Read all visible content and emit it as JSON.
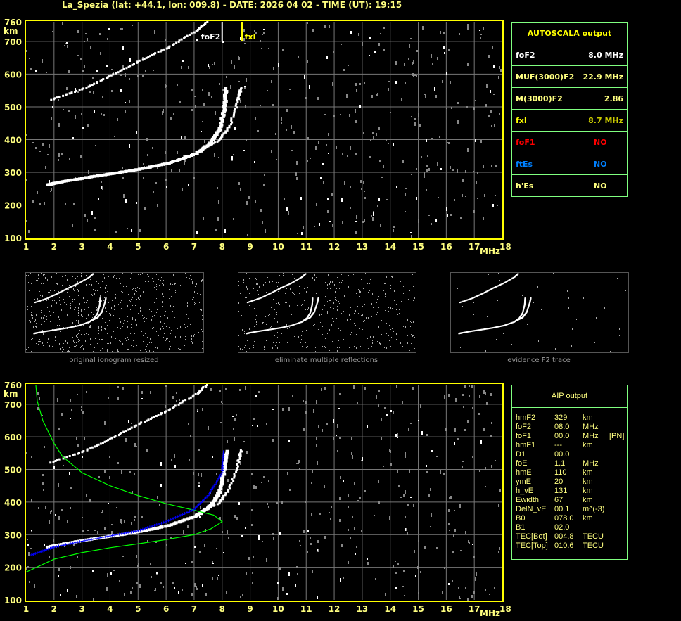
{
  "header": {
    "title": "La_Spezia (lat: +44.1, lon: 009.8) - DATE: 2026 04 02 - TIME (UT): 19:15"
  },
  "chart_data": [
    {
      "type": "scatter",
      "name": "ionogram-autoscala",
      "xlabel": "MHz",
      "ylabel": "km",
      "xlim": [
        1,
        18
      ],
      "ylim": [
        100,
        760
      ],
      "xticks": [
        "1",
        "2",
        "3",
        "4",
        "5",
        "6",
        "7",
        "8",
        "9",
        "10",
        "11",
        "12",
        "13",
        "14",
        "15",
        "16",
        "17",
        "18"
      ],
      "yticks": [
        "100",
        "200",
        "300",
        "400",
        "500",
        "600",
        "700",
        "760"
      ],
      "grid": true,
      "markers": [
        {
          "label": "foF2",
          "x": 8.0,
          "color": "#ffffff"
        },
        {
          "label": "fxI",
          "x": 8.7,
          "color": "#ffff00"
        }
      ]
    },
    {
      "type": "line",
      "name": "ionogram-aip",
      "xlabel": "MHz",
      "ylabel": "km",
      "xlim": [
        1,
        18
      ],
      "ylim": [
        100,
        760
      ],
      "xticks": [
        "1",
        "2",
        "3",
        "4",
        "5",
        "6",
        "7",
        "8",
        "9",
        "10",
        "11",
        "12",
        "13",
        "14",
        "15",
        "16",
        "17",
        "18"
      ],
      "yticks": [
        "100",
        "200",
        "300",
        "400",
        "500",
        "600",
        "700",
        "760"
      ],
      "grid": true,
      "profile_color": "#00ff00",
      "trace_color": "#0000ff"
    }
  ],
  "autoscala": {
    "title": "AUTOSCALA output",
    "rows": [
      {
        "label": "foF2",
        "value": "8.0 MHz",
        "color": "#ffffff",
        "vcolor": "#ffffff"
      },
      {
        "label": "MUF(3000)F2",
        "value": "22.9 MHz",
        "color": "#ffff80",
        "vcolor": "#ffff80"
      },
      {
        "label": "M(3000)F2",
        "value": "2.86",
        "color": "#ffff80",
        "vcolor": "#ffff80"
      },
      {
        "label": "fxI",
        "value": "8.7 MHz",
        "color": "#ffff00",
        "vcolor": "#c8c800"
      },
      {
        "label": "foF1",
        "value": "NO",
        "color": "#ff0000",
        "vcolor": "#ff0000"
      },
      {
        "label": "ftEs",
        "value": "NO",
        "color": "#0080ff",
        "vcolor": "#0080ff"
      },
      {
        "label": "h'Es",
        "value": "NO",
        "color": "#ffff80",
        "vcolor": "#ffff80"
      }
    ]
  },
  "thumbnails": [
    "original ionogram resized",
    "eliminate multiple reflections",
    "evidence F2 trace"
  ],
  "aip": {
    "title": "AIP output",
    "rows": [
      [
        "hmF2",
        "329",
        "km",
        ""
      ],
      [
        "foF2",
        "08.0",
        "MHz",
        ""
      ],
      [
        "foF1",
        "00.0",
        "MHz",
        "[PN]"
      ],
      [
        "hmF1",
        "---",
        "km",
        ""
      ],
      [
        "D1",
        "00.0",
        "",
        ""
      ],
      [
        "foE",
        "1.1",
        "MHz",
        ""
      ],
      [
        "hmE",
        "110",
        "km",
        ""
      ],
      [
        "ymE",
        "20",
        "km",
        ""
      ],
      [
        "h_vE",
        "131",
        "km",
        ""
      ],
      [
        "Ewidth",
        "67",
        "km",
        ""
      ],
      [
        "DelN_vE",
        "00.1",
        "m^(-3)",
        ""
      ],
      [
        "B0",
        "078.0",
        "km",
        ""
      ],
      [
        "B1",
        "02.0",
        "",
        ""
      ],
      [
        "TEC[Bot]",
        "004.8",
        "TECU",
        ""
      ],
      [
        "TEC[Top]",
        "010.6",
        "TECU",
        ""
      ]
    ]
  }
}
